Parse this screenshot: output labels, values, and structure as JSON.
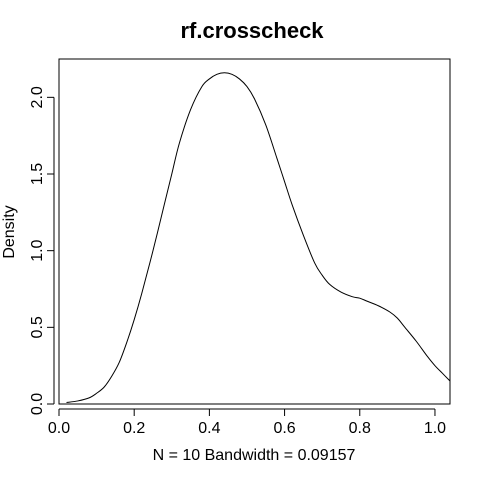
{
  "chart_data": {
    "type": "line",
    "title": "rf.crosscheck",
    "xlabel": "N = 10   Bandwidth = 0.09157",
    "ylabel": "Density",
    "xlim": [
      0.0,
      1.04
    ],
    "ylim": [
      0.0,
      2.25
    ],
    "x_ticks": [
      {
        "value": 0.0,
        "label": "0.0"
      },
      {
        "value": 0.2,
        "label": "0.2"
      },
      {
        "value": 0.4,
        "label": "0.4"
      },
      {
        "value": 0.6,
        "label": "0.6"
      },
      {
        "value": 0.8,
        "label": "0.8"
      },
      {
        "value": 1.0,
        "label": "1.0"
      }
    ],
    "y_ticks": [
      {
        "value": 0.0,
        "label": "0.0"
      },
      {
        "value": 0.5,
        "label": "0.5"
      },
      {
        "value": 1.0,
        "label": "1.0"
      },
      {
        "value": 1.5,
        "label": "1.5"
      },
      {
        "value": 2.0,
        "label": "2.0"
      }
    ],
    "grid": false,
    "series": [
      {
        "color": "#000000",
        "x": [
          0.02,
          0.05,
          0.08,
          0.1,
          0.12,
          0.14,
          0.16,
          0.18,
          0.2,
          0.22,
          0.25,
          0.28,
          0.3,
          0.32,
          0.35,
          0.38,
          0.4,
          0.42,
          0.44,
          0.46,
          0.48,
          0.5,
          0.52,
          0.55,
          0.58,
          0.6,
          0.62,
          0.65,
          0.68,
          0.7,
          0.72,
          0.75,
          0.78,
          0.8,
          0.82,
          0.85,
          0.88,
          0.9,
          0.92,
          0.95,
          0.98,
          1.0,
          1.02,
          1.04
        ],
        "y": [
          0.01,
          0.02,
          0.04,
          0.07,
          0.11,
          0.18,
          0.27,
          0.4,
          0.55,
          0.72,
          1.0,
          1.3,
          1.5,
          1.7,
          1.92,
          2.07,
          2.12,
          2.15,
          2.16,
          2.15,
          2.12,
          2.07,
          1.99,
          1.82,
          1.6,
          1.45,
          1.3,
          1.1,
          0.92,
          0.84,
          0.78,
          0.73,
          0.7,
          0.69,
          0.67,
          0.64,
          0.6,
          0.56,
          0.5,
          0.41,
          0.31,
          0.25,
          0.2,
          0.15
        ]
      }
    ]
  }
}
